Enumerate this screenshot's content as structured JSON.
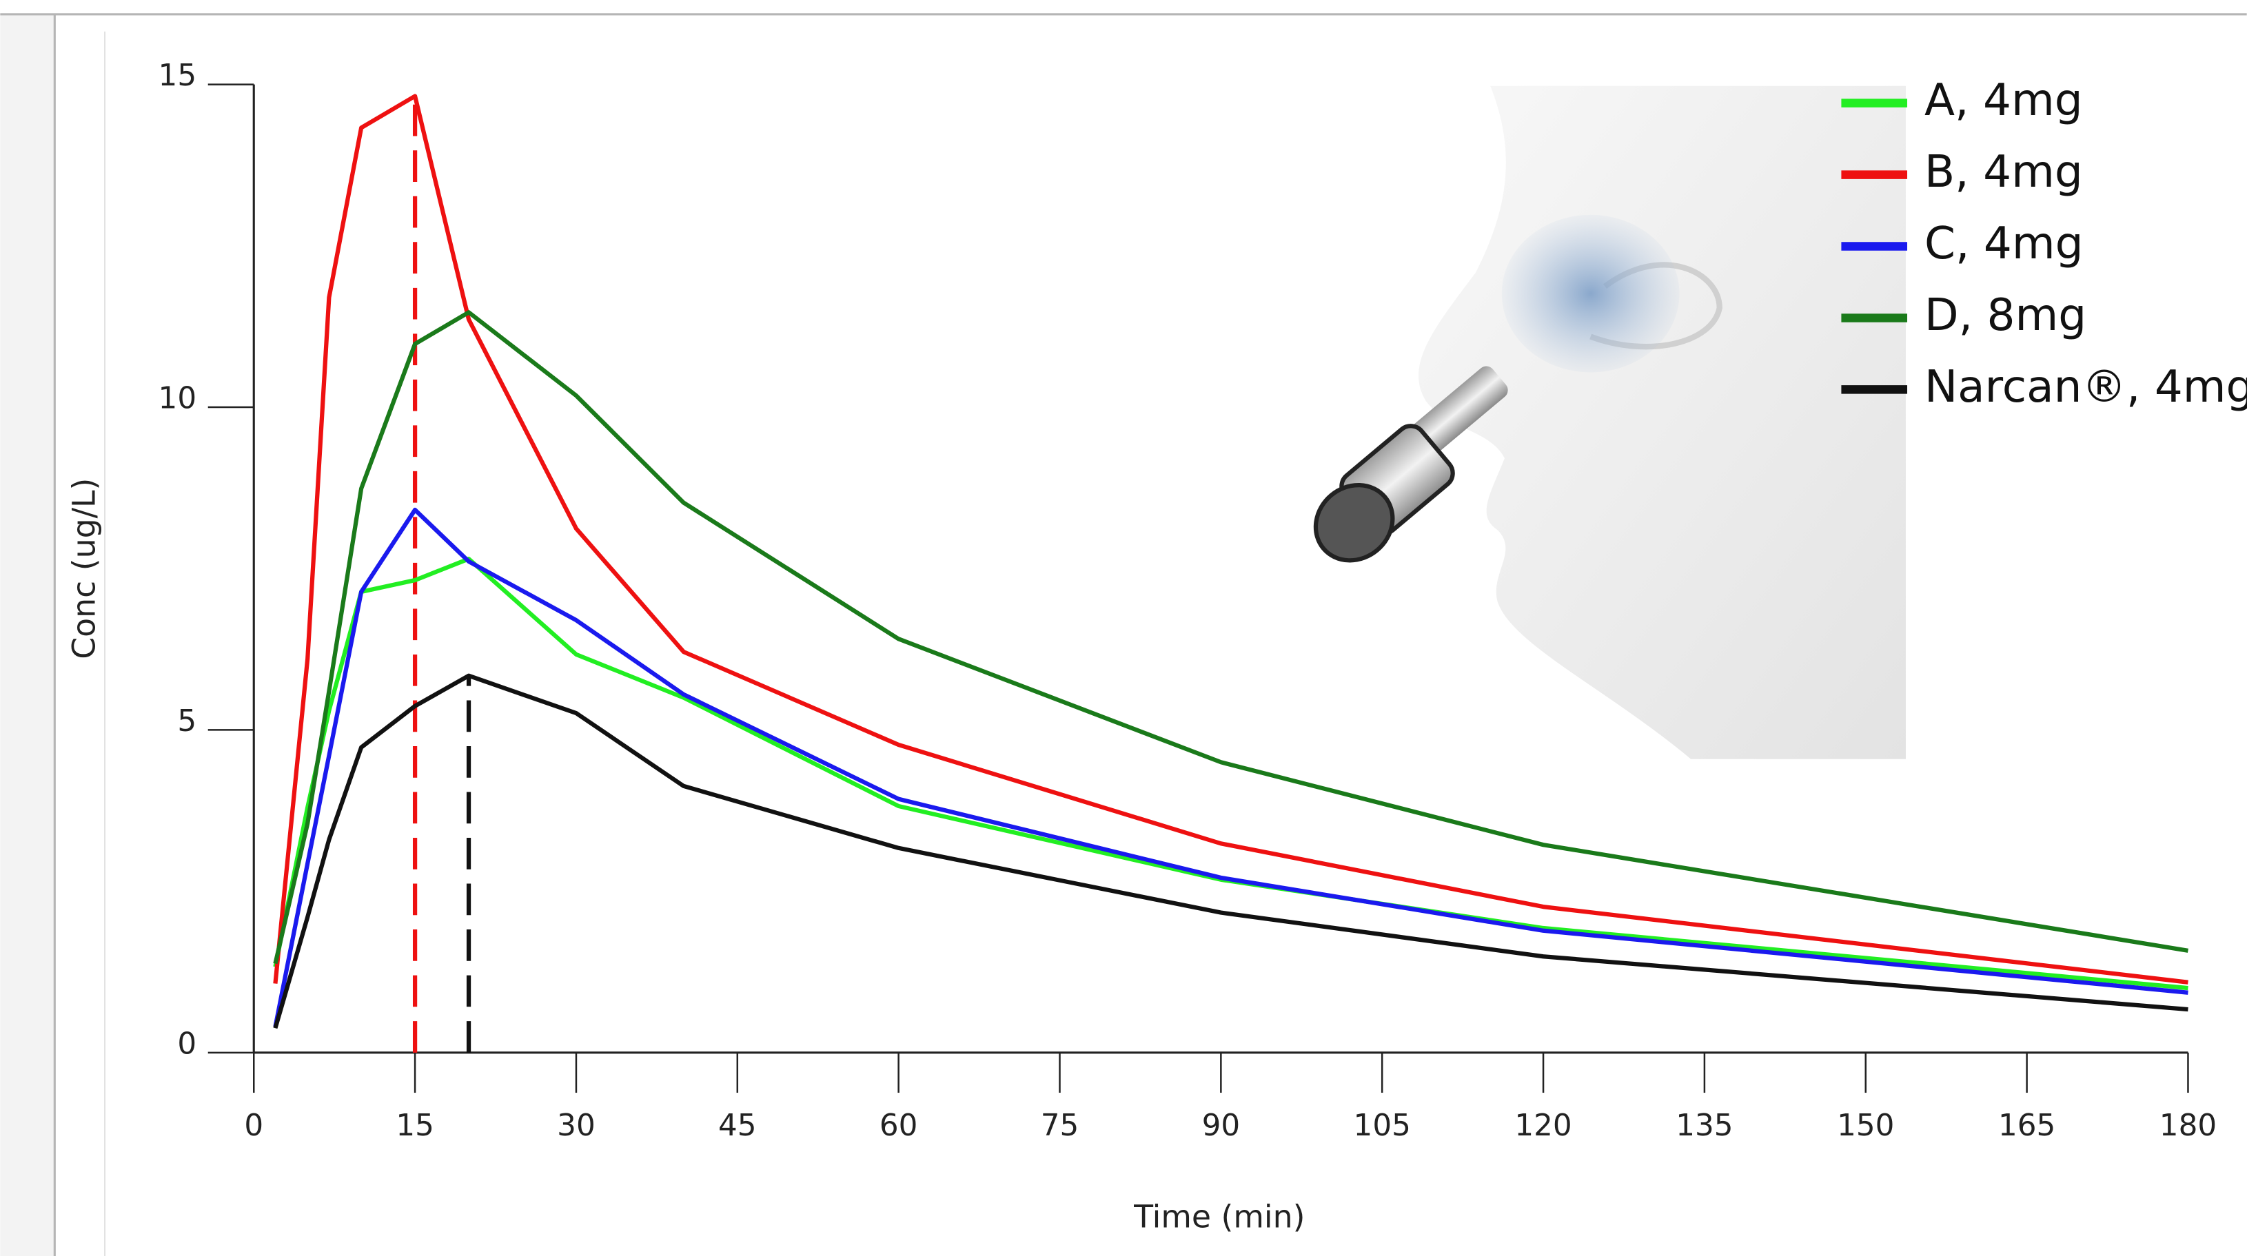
{
  "chart_data": {
    "type": "line",
    "x_label": "Time (min)",
    "y_label": "Conc (ug/L)",
    "x": [
      2,
      5,
      7,
      10,
      15,
      20,
      30,
      40,
      60,
      90,
      120,
      180
    ],
    "series": [
      {
        "name": "A, 4mg",
        "color": "#22ee22",
        "values": [
          1.33,
          3.8,
          5.3,
          7.14,
          7.32,
          7.65,
          6.17,
          5.5,
          3.82,
          2.68,
          1.93,
          1.0
        ]
      },
      {
        "name": "B, 4mg",
        "color": "#ee1111",
        "values": [
          1.07,
          6.1,
          11.7,
          14.33,
          14.82,
          11.36,
          8.12,
          6.21,
          4.77,
          3.24,
          2.26,
          1.09
        ]
      },
      {
        "name": "C, 4mg",
        "color": "#1a1aee",
        "values": [
          0.4,
          2.93,
          4.6,
          7.14,
          8.41,
          7.61,
          6.7,
          5.55,
          3.93,
          2.71,
          1.89,
          0.93
        ]
      },
      {
        "name": "D, 8mg",
        "color": "#1a7a1a",
        "values": [
          1.38,
          3.55,
          5.6,
          8.74,
          10.98,
          11.47,
          10.18,
          8.52,
          6.41,
          4.5,
          3.22,
          1.58
        ]
      },
      {
        "name": "Narcan®, 4mg",
        "color": "#111111",
        "values": [
          0.38,
          2.1,
          3.3,
          4.73,
          5.37,
          5.84,
          5.26,
          4.13,
          3.17,
          2.17,
          1.49,
          0.67
        ]
      }
    ],
    "xlim": [
      0,
      180
    ],
    "ylim": [
      0,
      15
    ],
    "xticks": [
      0,
      15,
      30,
      45,
      60,
      75,
      90,
      105,
      120,
      135,
      150,
      165,
      180
    ],
    "yticks": [
      0,
      5,
      10,
      15
    ],
    "peak_markers": [
      {
        "series": 1,
        "index": 4
      },
      {
        "series": 4,
        "index": 5
      }
    ],
    "legend": "upper right",
    "grid": false
  }
}
